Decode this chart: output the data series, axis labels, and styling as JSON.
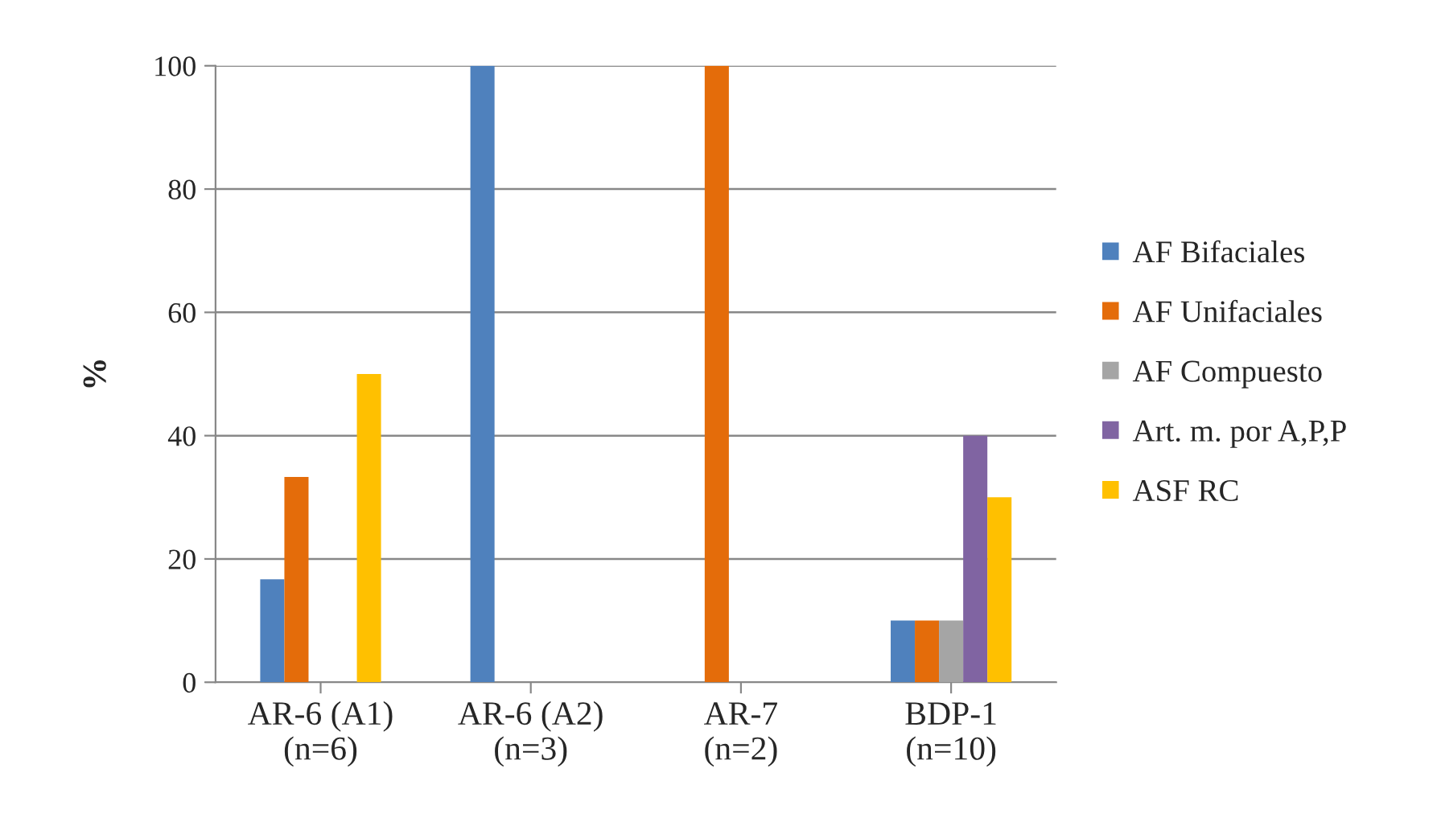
{
  "chart_data": {
    "type": "bar",
    "ylabel": "%",
    "categories": [
      "AR-6 (A1)\n(n=6)",
      "AR-6 (A2)\n(n=3)",
      "AR-7\n(n=2)",
      "BDP-1\n(n=10)"
    ],
    "series": [
      {
        "name": "AF Bifaciales",
        "color": "#4f81bd",
        "values": [
          16.7,
          100,
          0,
          10
        ]
      },
      {
        "name": "AF Unifaciales",
        "color": "#e46c0a",
        "values": [
          33.3,
          0,
          100,
          10
        ]
      },
      {
        "name": "AF Compuesto",
        "color": "#a5a5a5",
        "values": [
          0,
          0,
          0,
          10
        ]
      },
      {
        "name": "Art. m. por A,P,P",
        "color": "#8064a2",
        "values": [
          0,
          0,
          0,
          40
        ]
      },
      {
        "name": "ASF RC",
        "color": "#ffc000",
        "values": [
          50,
          0,
          0,
          30
        ]
      }
    ],
    "ylim": [
      0,
      100
    ],
    "yticks": [
      0,
      20,
      40,
      60,
      80,
      100
    ],
    "grid": "y",
    "legend": "right"
  }
}
